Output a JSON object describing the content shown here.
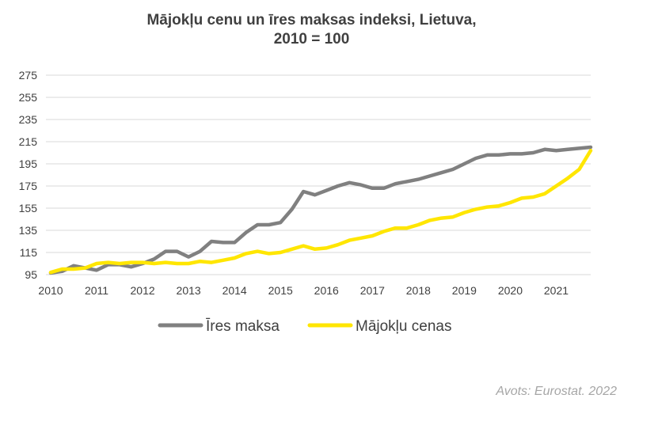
{
  "chart_data": {
    "type": "line",
    "title_lines": [
      "Mājokļu cenu un īres maksas indeksi, Lietuva,",
      "2010 = 100"
    ],
    "xlabel": "",
    "ylabel": "",
    "xlim": [
      2010,
      2021.75
    ],
    "ylim": [
      95,
      275
    ],
    "y_ticks": [
      95,
      115,
      135,
      155,
      175,
      195,
      215,
      235,
      255,
      275
    ],
    "x_ticks": [
      2010,
      2011,
      2012,
      2013,
      2014,
      2015,
      2016,
      2017,
      2018,
      2019,
      2020,
      2021
    ],
    "grid": "horizontal",
    "legend_position": "bottom",
    "x": [
      2010,
      2010.25,
      2010.5,
      2010.75,
      2011,
      2011.25,
      2011.5,
      2011.75,
      2012,
      2012.25,
      2012.5,
      2012.75,
      2013,
      2013.25,
      2013.5,
      2013.75,
      2014,
      2014.25,
      2014.5,
      2014.75,
      2015,
      2015.25,
      2015.5,
      2015.75,
      2016,
      2016.25,
      2016.5,
      2016.75,
      2017,
      2017.25,
      2017.5,
      2017.75,
      2018,
      2018.25,
      2018.5,
      2018.75,
      2019,
      2019.25,
      2019.5,
      2019.75,
      2020,
      2020.25,
      2020.5,
      2020.75,
      2021,
      2021.25,
      2021.5,
      2021.75
    ],
    "series": [
      {
        "name": "Īres maksa",
        "color": "#808080",
        "values": [
          96.5,
          98,
          103,
          101,
          99,
          104,
          104,
          102,
          105,
          109,
          116,
          116,
          111,
          116,
          125,
          124,
          124,
          133,
          140,
          140,
          142,
          154,
          170,
          167,
          171,
          175,
          178,
          176,
          173,
          173,
          177,
          179,
          181,
          184,
          187,
          190,
          195,
          200,
          203,
          203,
          204,
          204,
          205,
          208,
          207,
          208,
          209,
          210
        ]
      },
      {
        "name": "Mājokļu cenas",
        "color": "#ffe600",
        "values": [
          97,
          100,
          100,
          101,
          105,
          106,
          105,
          106,
          106,
          105,
          106,
          105,
          105,
          107,
          106,
          108,
          110,
          114,
          116,
          114,
          115,
          118,
          121,
          118,
          119,
          122,
          126,
          128,
          130,
          134,
          137,
          137,
          140,
          144,
          146,
          147,
          151,
          154,
          156,
          157,
          160,
          164,
          165,
          168,
          175,
          182,
          190,
          207
        ]
      }
    ]
  },
  "source_note": "Avots: Eurostat. 2022"
}
